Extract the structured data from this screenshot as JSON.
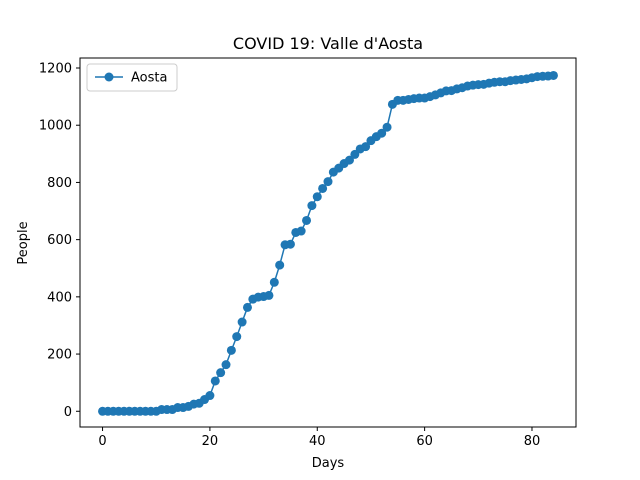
{
  "chart_data": {
    "type": "line",
    "title": "COVID 19: Valle d'Aosta",
    "xlabel": "Days",
    "ylabel": "People",
    "xlim": [
      -4.2,
      88.2
    ],
    "ylim": [
      -55,
      1235
    ],
    "xticks": [
      0,
      20,
      40,
      60,
      80
    ],
    "yticks": [
      0,
      200,
      400,
      600,
      800,
      1000,
      1200
    ],
    "grid": false,
    "legend_position": "top-left",
    "color": "#1f77b4",
    "marker": "circle",
    "series": [
      {
        "name": "Aosta",
        "x": [
          0,
          1,
          2,
          3,
          4,
          5,
          6,
          7,
          8,
          9,
          10,
          11,
          12,
          13,
          14,
          15,
          16,
          17,
          18,
          19,
          20,
          21,
          22,
          23,
          24,
          25,
          26,
          27,
          28,
          29,
          30,
          31,
          32,
          33,
          34,
          35,
          36,
          37,
          38,
          39,
          40,
          41,
          42,
          43,
          44,
          45,
          46,
          47,
          48,
          49,
          50,
          51,
          52,
          53,
          54,
          55,
          56,
          57,
          58,
          59,
          60,
          61,
          62,
          63,
          64,
          65,
          66,
          67,
          68,
          69,
          70,
          71,
          72,
          73,
          74,
          75,
          76,
          77,
          78,
          79,
          80,
          81,
          82,
          83,
          84
        ],
        "values": [
          0,
          0,
          0,
          0,
          0,
          0,
          0,
          0,
          0,
          0,
          0,
          6,
          6,
          6,
          13,
          13,
          17,
          25,
          28,
          41,
          55,
          106,
          135,
          163,
          213,
          261,
          312,
          363,
          392,
          399,
          401,
          405,
          451,
          511,
          582,
          584,
          625,
          630,
          667,
          719,
          750,
          779,
          803,
          836,
          850,
          866,
          878,
          898,
          917,
          925,
          946,
          960,
          972,
          993,
          1073,
          1087,
          1087,
          1090,
          1093,
          1095,
          1095,
          1100,
          1106,
          1113,
          1120,
          1121,
          1127,
          1131,
          1137,
          1140,
          1142,
          1143,
          1147,
          1150,
          1152,
          1152,
          1156,
          1158,
          1160,
          1162,
          1166,
          1170,
          1171,
          1172,
          1174
        ]
      }
    ]
  }
}
